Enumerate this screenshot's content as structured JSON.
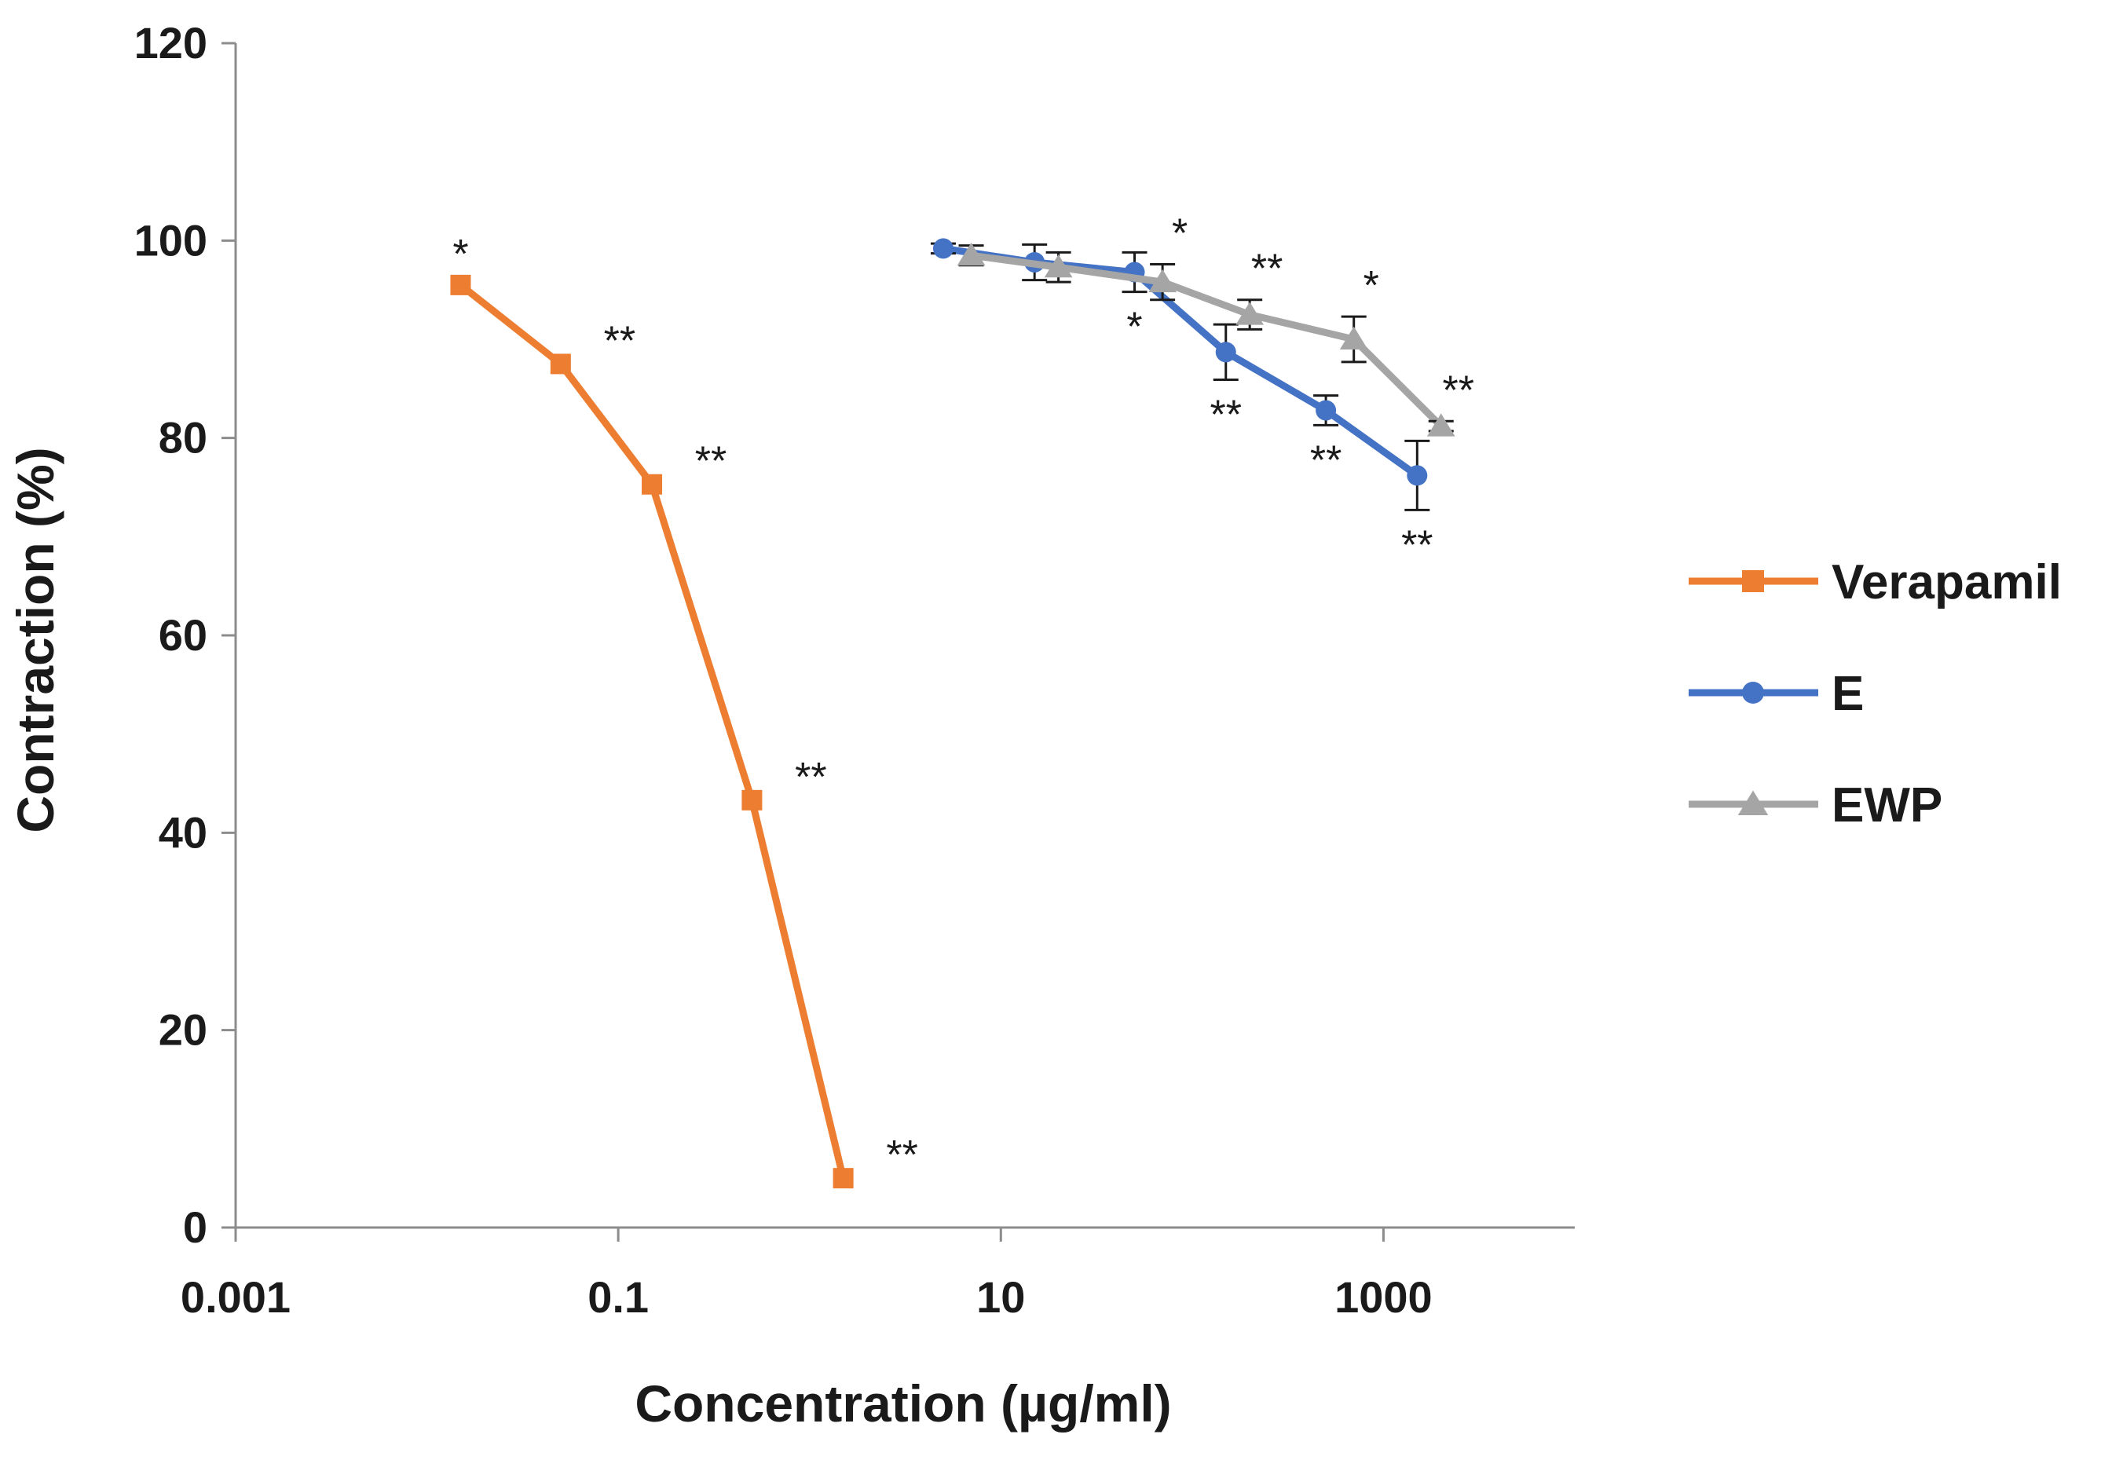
{
  "chart_data": {
    "type": "line",
    "title": "",
    "xlabel": "Concentration (µg/ml)",
    "ylabel": "Contraction (%)",
    "xscale": "log10",
    "xlim": [
      0.001,
      10000
    ],
    "ylim": [
      0,
      120
    ],
    "xticks": [
      0.001,
      0.1,
      10,
      1000
    ],
    "xtick_labels": [
      "0.001",
      "0.1",
      "10",
      "1000"
    ],
    "yticks": [
      0,
      20,
      40,
      60,
      80,
      100,
      120
    ],
    "ytick_labels": [
      "0",
      "20",
      "40",
      "60",
      "80",
      "100",
      "120"
    ],
    "grid": false,
    "legend_position": "right",
    "series": [
      {
        "name": "Verapamil",
        "color": "#ED7D31",
        "marker": "square",
        "x": [
          0.015,
          0.05,
          0.15,
          0.5,
          1.5
        ],
        "y": [
          95.5,
          87.5,
          75.3,
          43.3,
          5.0
        ],
        "error": [
          0,
          0,
          0,
          0,
          0
        ],
        "significance": [
          "*",
          "**",
          "**",
          "**",
          "**"
        ],
        "sig_position": [
          "above",
          "right",
          "right",
          "right",
          "right"
        ]
      },
      {
        "name": "E",
        "color": "#4472C4",
        "marker": "circle",
        "x": [
          5,
          15,
          50,
          150,
          500,
          1500
        ],
        "y": [
          99.2,
          97.8,
          96.8,
          88.7,
          82.8,
          76.2
        ],
        "error": [
          0.5,
          1.8,
          2.0,
          2.8,
          1.5,
          3.5
        ],
        "significance": [
          "",
          "",
          "*",
          "**",
          "**",
          "**"
        ],
        "sig_position": [
          "below",
          "below",
          "below",
          "below",
          "below",
          "below"
        ]
      },
      {
        "name": "EWP",
        "color": "#A5A5A5",
        "marker": "triangle",
        "x": [
          7,
          20,
          70,
          200,
          700,
          2000
        ],
        "y": [
          98.5,
          97.3,
          95.8,
          92.5,
          90.0,
          81.2
        ],
        "error": [
          1.0,
          1.5,
          1.8,
          1.5,
          2.3,
          0.5
        ],
        "significance": [
          "",
          "",
          "*",
          "**",
          "*",
          "**"
        ],
        "sig_position": [
          "above",
          "above",
          "above",
          "above",
          "above",
          "above"
        ]
      }
    ]
  }
}
